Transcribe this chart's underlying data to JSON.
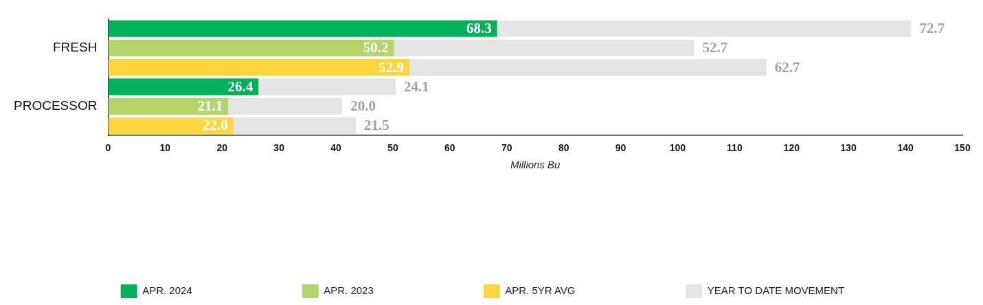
{
  "chart_data": {
    "type": "bar",
    "orientation": "horizontal",
    "stacked": true,
    "data_labels": true,
    "categories": [
      null,
      "FRESH",
      null,
      null,
      "PROCESSOR",
      null
    ],
    "series": [
      {
        "name": "APR. 2024",
        "color": "#00b15a",
        "values": [
          68.3,
          null,
          null,
          26.4,
          null,
          null
        ]
      },
      {
        "name": "APR. 2023",
        "color": "#b3d56a",
        "values": [
          null,
          50.2,
          null,
          null,
          21.1,
          null
        ]
      },
      {
        "name": "APR. 5YR AVG",
        "color": "#fdd53c",
        "values": [
          null,
          null,
          52.9,
          null,
          null,
          22.0
        ],
        "value_labels": [
          null,
          null,
          "52.9",
          null,
          null,
          "22.0"
        ]
      },
      {
        "name": "YEAR TO DATE MOVEMENT",
        "color": "#e4e4e4",
        "values": [
          72.7,
          52.7,
          62.7,
          24.1,
          20.0,
          21.5
        ],
        "value_labels": [
          "72.7",
          "52.7",
          "62.7",
          "24.1",
          "20.0",
          "21.5"
        ]
      }
    ],
    "xlabel": "Millions Bu",
    "xlim": [
      0,
      150
    ],
    "xticks": [
      0,
      10,
      20,
      30,
      40,
      50,
      60,
      70,
      80,
      90,
      100,
      110,
      120,
      130,
      140,
      150
    ],
    "grid": false,
    "legend": "bottom"
  }
}
